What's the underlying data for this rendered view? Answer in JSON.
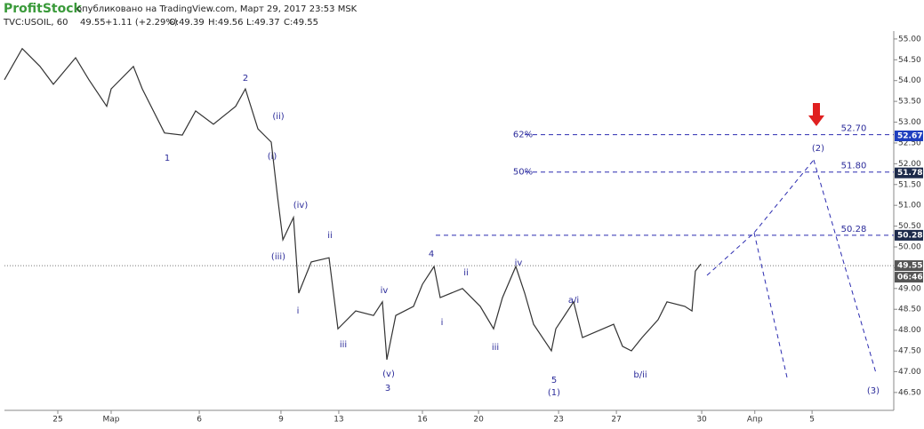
{
  "chart_data": {
    "type": "line",
    "brand": "ProfitStock",
    "published": "опубликовано на TradingView.com, Март 29, 2017 23:53 MSK",
    "symbol": "TVC:USOIL, 60",
    "last": "49.55",
    "change": "+1.11 (+2.29%)",
    "ohlc": [
      "O:49.39",
      "H:49.56",
      "L:49.37",
      "C:49.55"
    ],
    "x": [
      0,
      0.64,
      1.28,
      1.76,
      2.56,
      3.04,
      3.68,
      3.84,
      4.64,
      4.96,
      5.76,
      6.4,
      6.88,
      7.52,
      8.32,
      8.67,
      9.12,
      9.6,
      9.82,
      10.02,
      10.4,
      10.59,
      11.04,
      11.68,
      12,
      12.64,
      13.28,
      13.6,
      13.76,
      14.08,
      14.72,
      15.04,
      15.46,
      15.68,
      16.48,
      17.12,
      17.6,
      17.92,
      18.4,
      18.72,
      19.04,
      19.68,
      19.84,
      20.48,
      20.8,
      21.92,
      22.24,
      22.56,
      22.94,
      23.52,
      23.84,
      24.48,
      24.74,
      24.86,
      25.06
    ],
    "series": [
      {
        "name": "USOIL",
        "color": "#333333",
        "values": [
          54.02,
          54.77,
          54.34,
          53.91,
          54.55,
          54.02,
          53.38,
          53.8,
          54.34,
          53.8,
          52.74,
          52.69,
          53.27,
          52.95,
          53.38,
          53.8,
          52.84,
          52.52,
          51.24,
          50.17,
          50.71,
          48.89,
          49.64,
          49.74,
          48.03,
          48.46,
          48.35,
          48.68,
          47.29,
          48.35,
          48.57,
          49.1,
          49.53,
          48.78,
          49.0,
          48.57,
          48.03,
          48.78,
          49.53,
          48.89,
          48.14,
          47.5,
          48.03,
          48.68,
          47.82,
          48.14,
          47.61,
          47.5,
          47.82,
          48.25,
          48.68,
          48.57,
          48.46,
          49.42,
          49.59
        ]
      }
    ],
    "xlim": [
      0,
      32
    ],
    "xticks": [
      {
        "value": 1.92,
        "label": "25"
      },
      {
        "value": 3.84,
        "label": "Мар"
      },
      {
        "value": 7.01,
        "label": "6"
      },
      {
        "value": 9.95,
        "label": "9"
      },
      {
        "value": 12.03,
        "label": "13"
      },
      {
        "value": 15.04,
        "label": "16"
      },
      {
        "value": 17.06,
        "label": "20"
      },
      {
        "value": 19.94,
        "label": "23"
      },
      {
        "value": 22.02,
        "label": "27"
      },
      {
        "value": 25.09,
        "label": "30"
      },
      {
        "value": 27.0,
        "label": "Апр"
      },
      {
        "value": 29.06,
        "label": "5"
      }
    ],
    "ylim": [
      46.07,
      55.19
    ],
    "yticks": [
      {
        "value": 46.5,
        "label": "46.50"
      },
      {
        "value": 47,
        "label": "47.00"
      },
      {
        "value": 47.5,
        "label": "47.50"
      },
      {
        "value": 48,
        "label": "48.00"
      },
      {
        "value": 48.5,
        "label": "48.50"
      },
      {
        "value": 49,
        "label": "49.00"
      },
      {
        "value": 49.5,
        "label": "49.50"
      },
      {
        "value": 50,
        "label": "50.00"
      },
      {
        "value": 50.5,
        "label": "50.50"
      },
      {
        "value": 51,
        "label": "51.00"
      },
      {
        "value": 51.5,
        "label": "51.50"
      },
      {
        "value": 52,
        "label": "52.00"
      },
      {
        "value": 52.5,
        "label": "52.50"
      },
      {
        "value": 53,
        "label": "53.00"
      },
      {
        "value": 53.5,
        "label": "53.50"
      },
      {
        "value": 54,
        "label": "54.00"
      },
      {
        "value": 54.5,
        "label": "54.50"
      },
      {
        "value": 55,
        "label": "55.00"
      }
    ],
    "levels": [
      {
        "value": 52.7,
        "label": "52.70",
        "ratio": "62%"
      },
      {
        "value": 51.8,
        "label": "51.80",
        "ratio": "50%"
      },
      {
        "value": 50.28,
        "label": "50.28"
      }
    ],
    "badges": [
      {
        "value": 52.67,
        "label": "52.67",
        "color": "#1e3fbf"
      },
      {
        "value": 51.78,
        "label": "51.78",
        "color": "#1d2a4a"
      },
      {
        "value": 50.28,
        "label": "50.28",
        "color": "#1d2a4a"
      },
      {
        "value": 49.55,
        "label": "49.55",
        "color": "#555555"
      }
    ],
    "clock": "06:46",
    "wave_labels": [
      "1",
      "2",
      "(ii)",
      "(i)",
      "(iv)",
      "(iii)",
      "ii",
      "i",
      "iii",
      "iv",
      "(v)",
      "3",
      "4",
      "ii",
      "i",
      "iii",
      "iv",
      "a/i",
      "5",
      "(1)",
      "b/ii",
      "(2)",
      "(3)"
    ]
  }
}
